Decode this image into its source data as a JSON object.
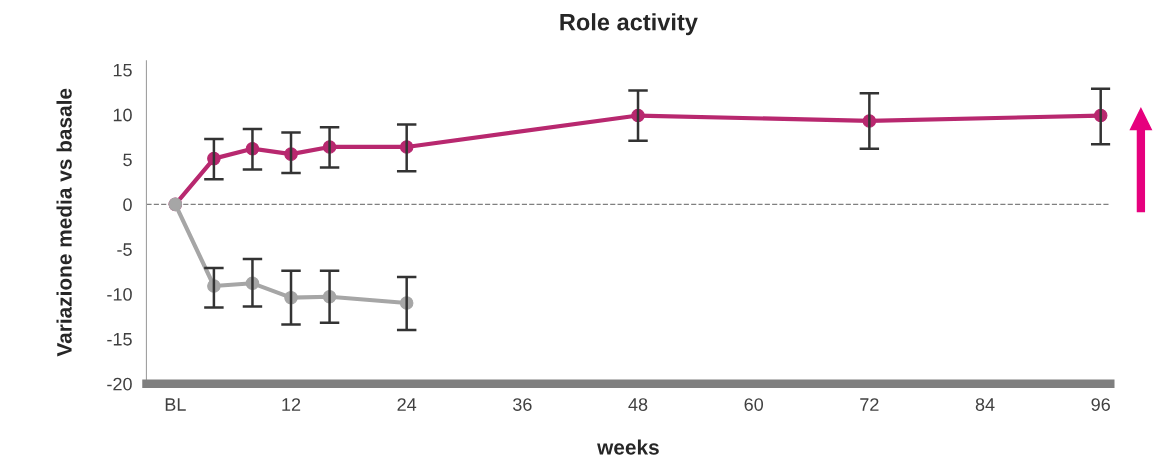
{
  "chart_data": {
    "type": "line",
    "title": "Role activity",
    "xlabel": "weeks",
    "ylabel": "Variazione media vs basale",
    "x": [
      0,
      4,
      8,
      12,
      16,
      24,
      48,
      72,
      96
    ],
    "series": [
      {
        "color": "#b8286f",
        "values": [
          0,
          5.1,
          6.2,
          5.6,
          6.4,
          6.4,
          9.9,
          9.3,
          9.9
        ],
        "errors": [
          null,
          [
            2.8,
            7.3
          ],
          [
            3.9,
            8.4
          ],
          [
            3.5,
            8.0
          ],
          [
            4.1,
            8.6
          ],
          [
            3.7,
            8.9
          ],
          [
            7.1,
            12.7
          ],
          [
            6.2,
            12.4
          ],
          [
            6.7,
            12.9
          ]
        ]
      },
      {
        "color": "#a6a6a6",
        "x": [
          0,
          4,
          8,
          12,
          16,
          24
        ],
        "values": [
          0,
          -9.1,
          -8.8,
          -10.4,
          -10.3,
          -11.0
        ],
        "errors": [
          null,
          [
            -11.5,
            -7.1
          ],
          [
            -11.4,
            -6.1
          ],
          [
            -13.4,
            -7.4
          ],
          [
            -13.2,
            -7.4
          ],
          [
            -14.0,
            -8.1
          ]
        ]
      }
    ],
    "xlim": [
      -3,
      97
    ],
    "xticks": [
      {
        "value": 0,
        "label": "BL"
      },
      12,
      24,
      36,
      48,
      60,
      72,
      84,
      96
    ],
    "ylim": [
      -20,
      16
    ],
    "yticks": [
      15,
      10,
      5,
      0,
      -5,
      -10,
      -15,
      -20
    ],
    "ref_lines": [
      {
        "axis": "y",
        "value": 0,
        "color": "#808080",
        "line_style": "dashed"
      }
    ],
    "marker": "circle",
    "line_style": "solid",
    "grid": false,
    "legend": false
  }
}
